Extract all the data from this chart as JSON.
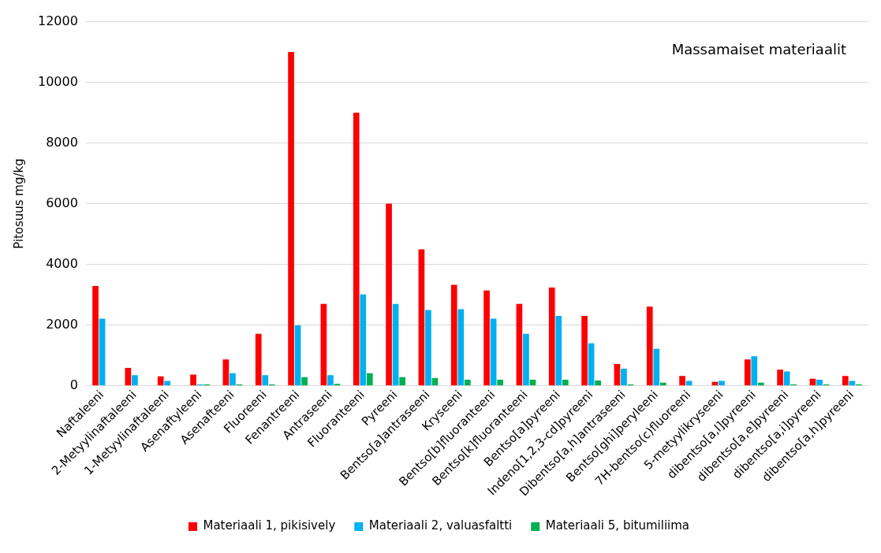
{
  "chart_data": {
    "type": "bar",
    "ylabel": "Pitosuus mg/kg",
    "annotations": [
      "Massamaiset materiaalit"
    ],
    "categories": [
      "Naftaleeni",
      "2-Metyylinaftaleeni",
      "1-Metyylinaftaleeni",
      "Asenaftyleeni",
      "Asenafteeni",
      "Fluoreeni",
      "Fenantreeni",
      "Antraseeni",
      "Fluoranteeni",
      "Pyreeni",
      "Bentso[a]antraseeni",
      "Kryseeni",
      "Bentso[b]fluoranteeni",
      "Bentso[k]fluoranteeni",
      "Bentso[a]pyreeni",
      "Indeno[1,2,3-cd]pyreeni",
      "Dibentso[a,h]antraseeni",
      "Bentso[ghi]peryleeni",
      "7H-bentso(c)fluoreeni",
      "5-metyylikryseeni",
      "dibentso[a,l]pyreeni",
      "dibentso[a,e]pyreeni",
      "dibentso[a,i]pyreeni",
      "dibentso[a,h]pyreeni"
    ],
    "series": [
      {
        "name": "Materiaali 1, pikisively",
        "color": "#ff0000",
        "values": [
          3290,
          590,
          310,
          370,
          870,
          1710,
          11000,
          2700,
          9000,
          6000,
          4500,
          3330,
          3140,
          2700,
          3240,
          2300,
          720,
          2610,
          320,
          130,
          870,
          530,
          230,
          320
        ]
      },
      {
        "name": "Materiaali 2, valuasfaltti",
        "color": "#00b0f0",
        "values": [
          2210,
          350,
          160,
          40,
          410,
          350,
          1990,
          350,
          3010,
          2700,
          2500,
          2520,
          2210,
          1710,
          2300,
          1400,
          560,
          1220,
          160,
          160,
          970,
          470,
          200,
          160
        ]
      },
      {
        "name": "Materiaali 5, bitumiliima",
        "color": "#00b050",
        "values": [
          null,
          null,
          null,
          40,
          40,
          40,
          280,
          60,
          410,
          280,
          250,
          200,
          200,
          200,
          200,
          170,
          40,
          100,
          null,
          null,
          100,
          40,
          40,
          40
        ]
      }
    ],
    "ylim": [
      0,
      12000
    ],
    "yticks": [
      0,
      2000,
      4000,
      6000,
      8000,
      10000,
      12000
    ],
    "grid": "y",
    "legend": "bottom"
  }
}
